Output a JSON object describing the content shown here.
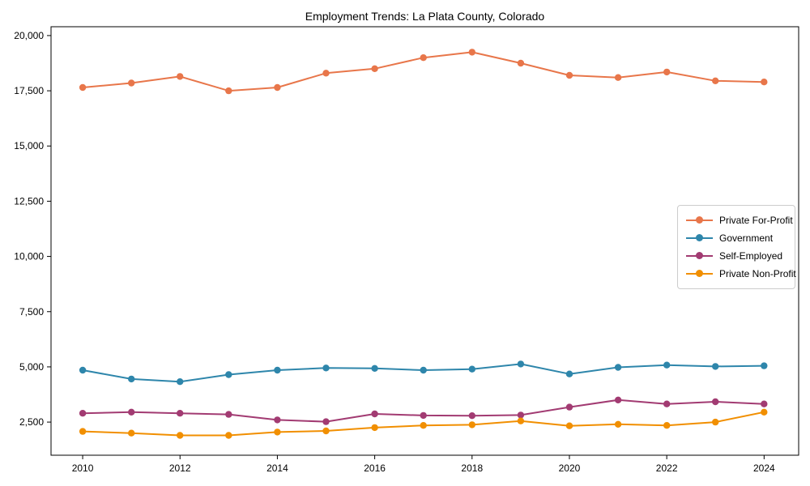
{
  "title": "Employment Trends: La Plata County, Colorado",
  "chart_data": {
    "type": "line",
    "title": "Employment Trends: La Plata County, Colorado",
    "xlabel": "",
    "ylabel": "",
    "x": [
      2010,
      2011,
      2012,
      2013,
      2014,
      2015,
      2016,
      2017,
      2018,
      2019,
      2020,
      2021,
      2022,
      2023,
      2024
    ],
    "series": [
      {
        "name": "Private For-Profit",
        "color": "#E8764A",
        "values": [
          17650,
          17850,
          18150,
          17500,
          17650,
          18300,
          18500,
          19000,
          19250,
          18750,
          18200,
          18100,
          18350,
          17950,
          17900
        ]
      },
      {
        "name": "Government",
        "color": "#2E86AB",
        "values": [
          4850,
          4450,
          4330,
          4650,
          4850,
          4950,
          4930,
          4850,
          4900,
          5130,
          4680,
          4980,
          5080,
          5020,
          5050
        ]
      },
      {
        "name": "Self-Employed",
        "color": "#A23B72",
        "values": [
          2900,
          2950,
          2900,
          2850,
          2600,
          2520,
          2870,
          2800,
          2790,
          2820,
          3180,
          3500,
          3320,
          3420,
          3320
        ]
      },
      {
        "name": "Private Non-Profit",
        "color": "#F18F01",
        "values": [
          2080,
          2000,
          1900,
          1900,
          2050,
          2100,
          2250,
          2350,
          2380,
          2550,
          2330,
          2400,
          2350,
          2500,
          2950
        ]
      }
    ],
    "xticks": [
      2010,
      2012,
      2014,
      2016,
      2018,
      2020,
      2022,
      2024
    ],
    "yticks": [
      2500,
      5000,
      7500,
      10000,
      12500,
      15000,
      17500,
      20000
    ],
    "xlim": [
      2009.35,
      2024.71
    ],
    "ylim": [
      1000,
      20400
    ],
    "grid": false,
    "legend_position": "center right",
    "marker": "circle",
    "line_width": 2,
    "marker_radius": 4.2,
    "axis_color": "#000000",
    "background": "#ffffff"
  }
}
